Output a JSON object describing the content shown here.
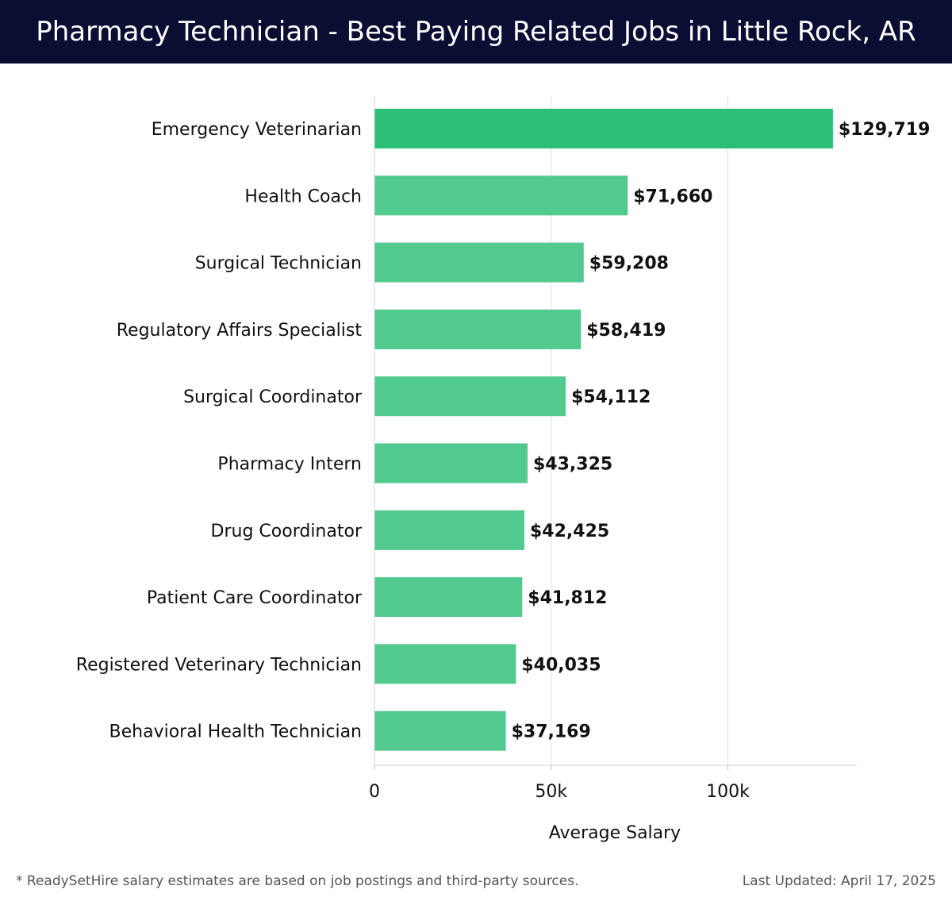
{
  "header": {
    "title": "Pharmacy Technician - Best Paying Related Jobs in Little Rock, AR"
  },
  "colors": {
    "header_bg": "#0b0e33",
    "bar_top": "#2abf74",
    "bar": "#52c98f",
    "grid": "#e0e0e0"
  },
  "chart_data": {
    "type": "bar",
    "orientation": "horizontal",
    "categories": [
      "Emergency Veterinarian",
      "Health Coach",
      "Surgical Technician",
      "Regulatory Affairs Specialist",
      "Surgical Coordinator",
      "Pharmacy Intern",
      "Drug Coordinator",
      "Patient Care Coordinator",
      "Registered Veterinary Technician",
      "Behavioral Health Technician"
    ],
    "values": [
      129719,
      71660,
      59208,
      58419,
      54112,
      43325,
      42425,
      41812,
      40035,
      37169
    ],
    "value_labels": [
      "$129,719",
      "$71,660",
      "$59,208",
      "$58,419",
      "$54,112",
      "$43,325",
      "$42,425",
      "$41,812",
      "$40,035",
      "$37,169"
    ],
    "xticks": [
      0,
      50000,
      100000
    ],
    "xtick_labels": [
      "0",
      "50k",
      "100k"
    ],
    "xlabel": "Average Salary",
    "xlim": [
      0,
      136500
    ],
    "grid": true
  },
  "footer": {
    "note": "* ReadySetHire salary estimates are based on job postings and third-party sources.",
    "updated": "Last Updated: April 17, 2025"
  }
}
